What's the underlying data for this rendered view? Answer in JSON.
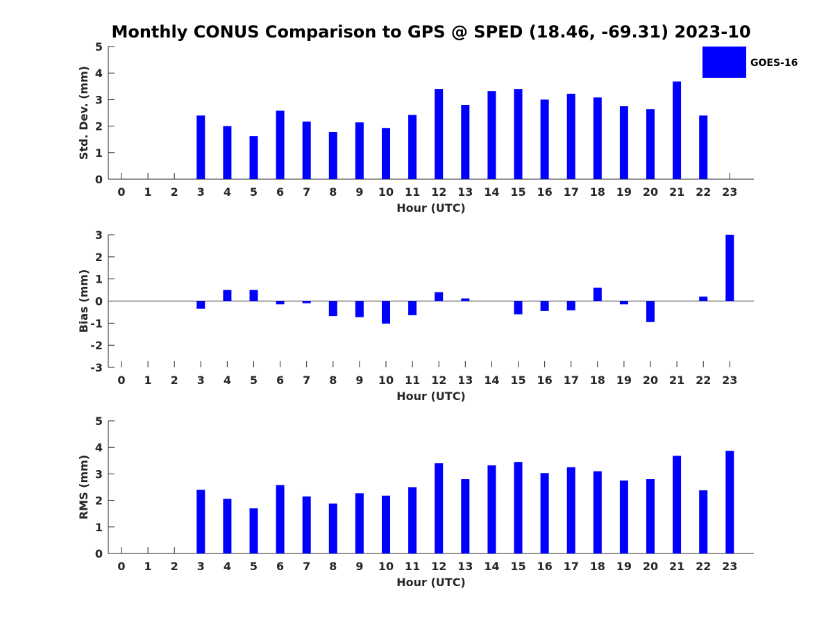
{
  "title": "Monthly CONUS Comparison to GPS @ SPED (18.46, -69.31) 2023-10",
  "legend": {
    "label": "GOES-16",
    "placement": "top-right",
    "color": "#0000ff"
  },
  "bar_color": "#0000ff",
  "chart_data": [
    {
      "type": "bar",
      "name": "std-dev",
      "series": [
        {
          "name": "GOES-16",
          "values": [
            null,
            null,
            null,
            2.4,
            2.0,
            1.62,
            2.58,
            2.17,
            1.78,
            2.14,
            1.93,
            2.42,
            3.4,
            2.8,
            3.32,
            3.4,
            3.0,
            3.22,
            3.08,
            2.75,
            2.64,
            3.68,
            2.4,
            null
          ]
        }
      ],
      "categories": [
        "0",
        "1",
        "2",
        "3",
        "4",
        "5",
        "6",
        "7",
        "8",
        "9",
        "10",
        "11",
        "12",
        "13",
        "14",
        "15",
        "16",
        "17",
        "18",
        "19",
        "20",
        "21",
        "22",
        "23"
      ],
      "xlabel": "Hour (UTC)",
      "ylabel": "Std. Dev. (mm)",
      "ylim": [
        0,
        5
      ],
      "yticks": [
        "0",
        "1",
        "2",
        "3",
        "4",
        "5"
      ],
      "grid": false
    },
    {
      "type": "bar",
      "name": "bias",
      "series": [
        {
          "name": "GOES-16",
          "values": [
            null,
            null,
            null,
            -0.35,
            0.5,
            0.5,
            -0.15,
            -0.1,
            -0.68,
            -0.73,
            -1.02,
            -0.64,
            0.4,
            0.12,
            0.0,
            -0.6,
            -0.45,
            -0.42,
            0.6,
            -0.15,
            -0.95,
            0.0,
            0.2,
            3.0
          ]
        }
      ],
      "categories": [
        "0",
        "1",
        "2",
        "3",
        "4",
        "5",
        "6",
        "7",
        "8",
        "9",
        "10",
        "11",
        "12",
        "13",
        "14",
        "15",
        "16",
        "17",
        "18",
        "19",
        "20",
        "21",
        "22",
        "23"
      ],
      "xlabel": "Hour (UTC)",
      "ylabel": "Bias (mm)",
      "ylim": [
        -3,
        3
      ],
      "yticks": [
        "-3",
        "-2",
        "-1",
        "0",
        "1",
        "2",
        "3"
      ],
      "grid": false
    },
    {
      "type": "bar",
      "name": "rms",
      "series": [
        {
          "name": "GOES-16",
          "values": [
            null,
            null,
            null,
            2.4,
            2.06,
            1.7,
            2.58,
            2.15,
            1.88,
            2.27,
            2.18,
            2.5,
            3.4,
            2.8,
            3.32,
            3.45,
            3.03,
            3.25,
            3.1,
            2.75,
            2.8,
            3.68,
            2.38,
            3.87
          ]
        }
      ],
      "categories": [
        "0",
        "1",
        "2",
        "3",
        "4",
        "5",
        "6",
        "7",
        "8",
        "9",
        "10",
        "11",
        "12",
        "13",
        "14",
        "15",
        "16",
        "17",
        "18",
        "19",
        "20",
        "21",
        "22",
        "23"
      ],
      "xlabel": "Hour (UTC)",
      "ylabel": "RMS (mm)",
      "ylim": [
        0,
        5
      ],
      "yticks": [
        "0",
        "1",
        "2",
        "3",
        "4",
        "5"
      ],
      "grid": false
    }
  ]
}
